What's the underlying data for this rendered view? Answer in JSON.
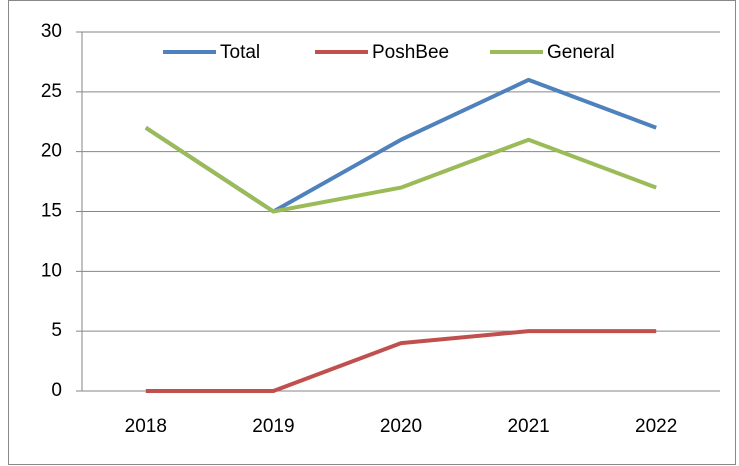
{
  "chart_data": {
    "type": "line",
    "categories": [
      "2018",
      "2019",
      "2020",
      "2021",
      "2022"
    ],
    "series": [
      {
        "name": "Total",
        "color": "#4f81bd",
        "values": [
          22,
          15,
          21,
          26,
          22
        ]
      },
      {
        "name": "PoshBee",
        "color": "#c0504d",
        "values": [
          0,
          0,
          4,
          5,
          5
        ]
      },
      {
        "name": "General",
        "color": "#9bbb59",
        "values": [
          22,
          15,
          17,
          21,
          17
        ]
      }
    ],
    "ylim": [
      0,
      30
    ],
    "yticks": [
      0,
      5,
      10,
      15,
      20,
      25,
      30
    ],
    "grid": true,
    "legend": "top"
  }
}
